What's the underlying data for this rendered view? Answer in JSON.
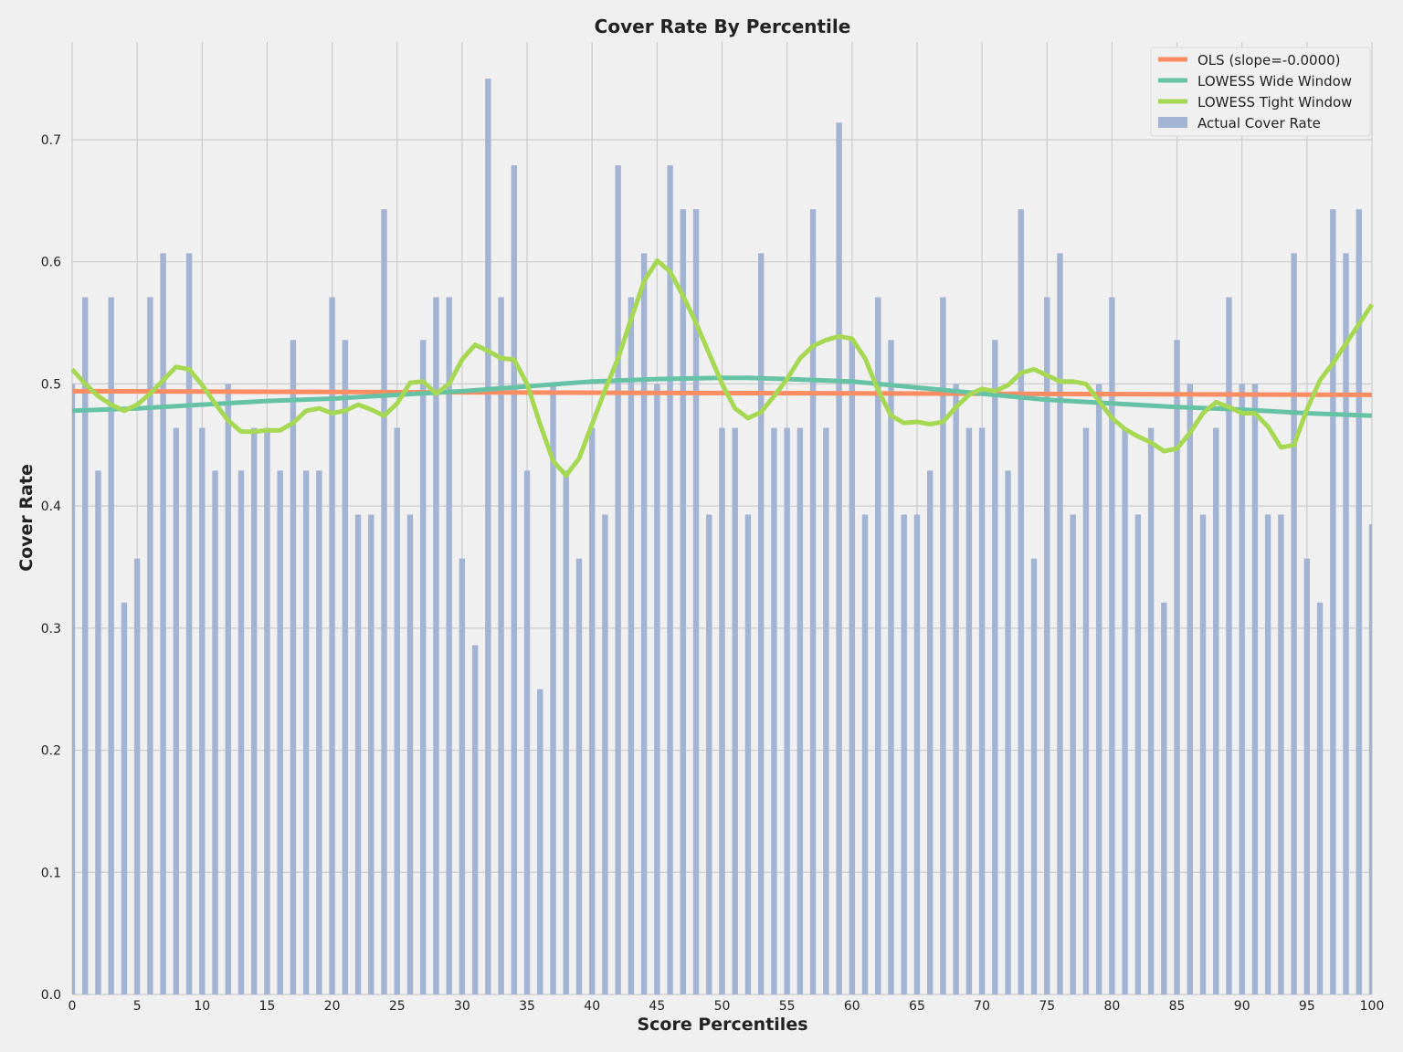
{
  "chart_data": {
    "type": "bar",
    "title": "Cover Rate By Percentile",
    "xlabel": "Score Percentiles",
    "ylabel": "Cover Rate",
    "xlim": [
      0,
      100
    ],
    "ylim": [
      0,
      0.78
    ],
    "x_ticks": [
      0,
      5,
      10,
      15,
      20,
      25,
      30,
      35,
      40,
      45,
      50,
      55,
      60,
      65,
      70,
      75,
      80,
      85,
      90,
      95,
      100
    ],
    "y_ticks": [
      "0.0",
      "0.1",
      "0.2",
      "0.3",
      "0.4",
      "0.5",
      "0.6",
      "0.7"
    ],
    "grid": true,
    "legend_position": "top-right",
    "colors": {
      "background": "#f0f0f0",
      "grid": "#cbcbcb",
      "bars": "#a3b3d3",
      "ols": "#fc8d62",
      "lowess_wide": "#66c2a5",
      "lowess_tight": "#a6d854"
    },
    "series": [
      {
        "name": "Actual Cover Rate",
        "type": "bar",
        "x": [
          0,
          1,
          2,
          3,
          4,
          5,
          6,
          7,
          8,
          9,
          10,
          11,
          12,
          13,
          14,
          15,
          16,
          17,
          18,
          19,
          20,
          21,
          22,
          23,
          24,
          25,
          26,
          27,
          28,
          29,
          30,
          31,
          32,
          33,
          34,
          35,
          36,
          37,
          38,
          39,
          40,
          41,
          42,
          43,
          44,
          45,
          46,
          47,
          48,
          49,
          50,
          51,
          52,
          53,
          54,
          55,
          56,
          57,
          58,
          59,
          60,
          61,
          62,
          63,
          64,
          65,
          66,
          67,
          68,
          69,
          70,
          71,
          72,
          73,
          74,
          75,
          76,
          77,
          78,
          79,
          80,
          81,
          82,
          83,
          84,
          85,
          86,
          87,
          88,
          89,
          90,
          91,
          92,
          93,
          94,
          95,
          96,
          97,
          98,
          99,
          100
        ],
        "values": [
          0.5,
          0.571,
          0.429,
          0.571,
          0.321,
          0.357,
          0.571,
          0.607,
          0.464,
          0.607,
          0.464,
          0.429,
          0.5,
          0.429,
          0.464,
          0.464,
          0.429,
          0.536,
          0.429,
          0.429,
          0.571,
          0.536,
          0.393,
          0.393,
          0.643,
          0.464,
          0.393,
          0.536,
          0.571,
          0.571,
          0.357,
          0.286,
          0.75,
          0.571,
          0.679,
          0.429,
          0.25,
          0.5,
          0.429,
          0.357,
          0.464,
          0.393,
          0.679,
          0.571,
          0.607,
          0.5,
          0.679,
          0.643,
          0.643,
          0.393,
          0.464,
          0.464,
          0.393,
          0.607,
          0.464,
          0.464,
          0.464,
          0.643,
          0.464,
          0.714,
          0.536,
          0.393,
          0.571,
          0.536,
          0.393,
          0.393,
          0.429,
          0.571,
          0.5,
          0.464,
          0.464,
          0.536,
          0.429,
          0.643,
          0.357,
          0.571,
          0.607,
          0.393,
          0.464,
          0.5,
          0.571,
          0.464,
          0.393,
          0.464,
          0.321,
          0.536,
          0.5,
          0.393,
          0.464,
          0.571,
          0.5,
          0.5,
          0.393,
          0.393,
          0.607,
          0.357,
          0.321,
          0.643,
          0.607,
          0.643,
          0.385
        ]
      },
      {
        "name": "OLS (slope=-0.0000)",
        "type": "line",
        "x": [
          0,
          100
        ],
        "values": [
          0.494,
          0.491
        ]
      },
      {
        "name": "LOWESS Wide Window",
        "type": "line",
        "x": [
          0,
          5,
          10,
          15,
          20,
          25,
          30,
          35,
          40,
          45,
          50,
          52,
          55,
          60,
          65,
          70,
          75,
          80,
          85,
          90,
          95,
          100
        ],
        "values": [
          0.478,
          0.48,
          0.483,
          0.486,
          0.488,
          0.491,
          0.494,
          0.498,
          0.502,
          0.504,
          0.505,
          0.505,
          0.504,
          0.502,
          0.497,
          0.492,
          0.487,
          0.484,
          0.481,
          0.479,
          0.476,
          0.474
        ]
      },
      {
        "name": "LOWESS Tight Window",
        "type": "line",
        "x": [
          0,
          1,
          2,
          3,
          4,
          5,
          6,
          7,
          8,
          9,
          10,
          11,
          12,
          13,
          14,
          15,
          16,
          17,
          18,
          19,
          20,
          21,
          22,
          23,
          24,
          25,
          26,
          27,
          28,
          29,
          30,
          31,
          32,
          33,
          34,
          35,
          36,
          37,
          38,
          39,
          40,
          41,
          42,
          43,
          44,
          45,
          46,
          47,
          48,
          49,
          50,
          51,
          52,
          53,
          54,
          55,
          56,
          57,
          58,
          59,
          60,
          61,
          62,
          63,
          64,
          65,
          66,
          67,
          68,
          69,
          70,
          71,
          72,
          73,
          74,
          75,
          76,
          77,
          78,
          79,
          80,
          81,
          82,
          83,
          84,
          85,
          86,
          87,
          88,
          89,
          90,
          91,
          92,
          93,
          94,
          95,
          96,
          97,
          98,
          99,
          100
        ],
        "values": [
          0.512,
          0.5,
          0.49,
          0.483,
          0.478,
          0.483,
          0.492,
          0.503,
          0.514,
          0.512,
          0.499,
          0.484,
          0.47,
          0.461,
          0.461,
          0.462,
          0.462,
          0.468,
          0.478,
          0.48,
          0.476,
          0.478,
          0.483,
          0.479,
          0.474,
          0.484,
          0.501,
          0.502,
          0.492,
          0.5,
          0.52,
          0.532,
          0.527,
          0.521,
          0.52,
          0.5,
          0.467,
          0.437,
          0.425,
          0.439,
          0.467,
          0.495,
          0.521,
          0.553,
          0.584,
          0.601,
          0.592,
          0.572,
          0.55,
          0.525,
          0.5,
          0.48,
          0.472,
          0.477,
          0.49,
          0.504,
          0.521,
          0.531,
          0.536,
          0.539,
          0.537,
          0.521,
          0.495,
          0.474,
          0.468,
          0.469,
          0.467,
          0.469,
          0.481,
          0.491,
          0.496,
          0.494,
          0.499,
          0.509,
          0.512,
          0.507,
          0.502,
          0.502,
          0.5,
          0.486,
          0.472,
          0.463,
          0.457,
          0.452,
          0.445,
          0.447,
          0.46,
          0.476,
          0.485,
          0.481,
          0.476,
          0.476,
          0.465,
          0.448,
          0.45,
          0.479,
          0.503,
          0.517,
          0.533,
          0.549,
          0.565
        ]
      }
    ]
  }
}
